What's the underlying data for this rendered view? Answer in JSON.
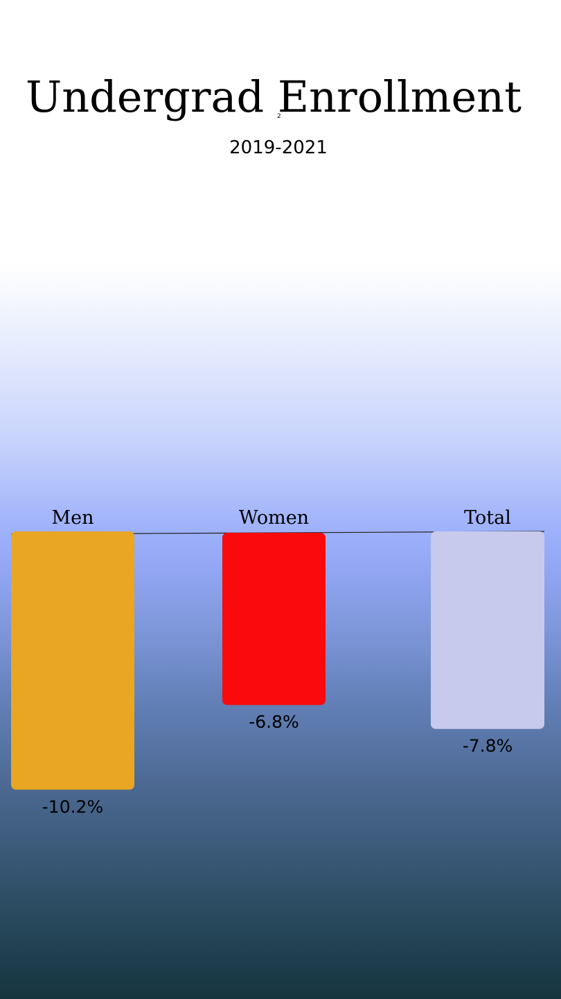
{
  "chart_data": {
    "type": "bar",
    "title": "Undergrad Enrollment",
    "title_marker": "2",
    "subtitle": "2019-2021",
    "xlabel": "",
    "ylabel": "",
    "categories": [
      "Men",
      "Women",
      "Total"
    ],
    "values": [
      -10.2,
      -6.8,
      -7.8
    ],
    "value_labels": [
      "-10.2%",
      "-6.8%",
      "-7.8%"
    ],
    "colors": [
      "#E8A623",
      "#FA0A0C",
      "#C7CAEC"
    ],
    "ylim": [
      -12,
      0
    ],
    "grid": false,
    "legend": "none",
    "baseline_color": "#222222"
  }
}
